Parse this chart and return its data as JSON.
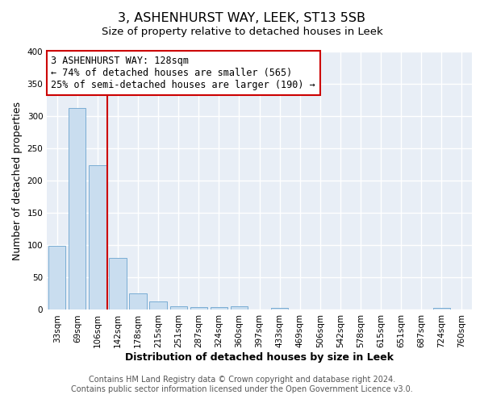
{
  "title": "3, ASHENHURST WAY, LEEK, ST13 5SB",
  "subtitle": "Size of property relative to detached houses in Leek",
  "xlabel": "Distribution of detached houses by size in Leek",
  "ylabel": "Number of detached properties",
  "bar_labels": [
    "33sqm",
    "69sqm",
    "106sqm",
    "142sqm",
    "178sqm",
    "215sqm",
    "251sqm",
    "287sqm",
    "324sqm",
    "360sqm",
    "397sqm",
    "433sqm",
    "469sqm",
    "506sqm",
    "542sqm",
    "578sqm",
    "615sqm",
    "651sqm",
    "687sqm",
    "724sqm",
    "760sqm"
  ],
  "bar_values": [
    99,
    313,
    224,
    80,
    25,
    13,
    5,
    4,
    4,
    6,
    0,
    3,
    0,
    0,
    0,
    0,
    0,
    0,
    0,
    3,
    0
  ],
  "bar_color": "#c9ddef",
  "bar_edge_color": "#7aadd4",
  "vline_color": "#cc0000",
  "annotation_text": "3 ASHENHURST WAY: 128sqm\n← 74% of detached houses are smaller (565)\n25% of semi-detached houses are larger (190) →",
  "annotation_box_facecolor": "#ffffff",
  "annotation_box_edgecolor": "#cc0000",
  "ylim": [
    0,
    400
  ],
  "yticks": [
    0,
    50,
    100,
    150,
    200,
    250,
    300,
    350,
    400
  ],
  "footer_line1": "Contains HM Land Registry data © Crown copyright and database right 2024.",
  "footer_line2": "Contains public sector information licensed under the Open Government Licence v3.0.",
  "fig_bg_color": "#ffffff",
  "plot_bg_color": "#e8eef6",
  "grid_color": "#ffffff",
  "title_fontsize": 11.5,
  "subtitle_fontsize": 9.5,
  "axis_label_fontsize": 9,
  "tick_fontsize": 7.5,
  "annotation_fontsize": 8.5,
  "footer_fontsize": 7
}
